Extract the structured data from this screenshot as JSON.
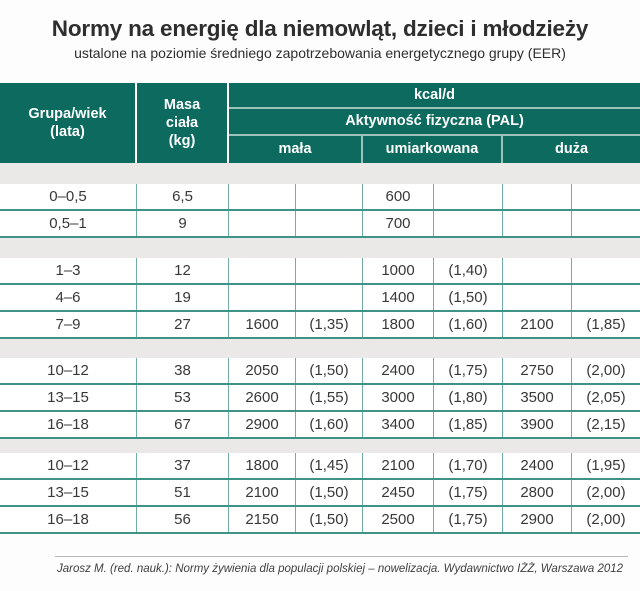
{
  "title": "Normy na energię dla niemowląt, dzieci i młodzieży",
  "subtitle": "ustalone na poziomie średniego zapotrzebowania energetycznego grupy (EER)",
  "colors": {
    "header_teal": "#0c6b5e",
    "row_line_teal": "#3f9286",
    "column_line_teal": "#6fb0a4",
    "gap_gray": "#ebe9e7"
  },
  "table": {
    "header": {
      "group_age": "Grupa/wiek\n(lata)",
      "body_mass": "Masa\nciała\n(kg)",
      "kcal": "kcal/d",
      "pal": "Aktywność fizyczna (PAL)",
      "activity_levels": [
        "mała",
        "umiarkowana",
        "duża"
      ]
    },
    "sections": [
      {
        "rows": [
          [
            "0–0,5",
            "6,5",
            "",
            "",
            "600",
            "",
            "",
            ""
          ],
          [
            "0,5–1",
            "9",
            "",
            "",
            "700",
            "",
            "",
            ""
          ]
        ]
      },
      {
        "rows": [
          [
            "1–3",
            "12",
            "",
            "",
            "1000",
            "(1,40)",
            "",
            ""
          ],
          [
            "4–6",
            "19",
            "",
            "",
            "1400",
            "(1,50)",
            "",
            ""
          ],
          [
            "7–9",
            "27",
            "1600",
            "(1,35)",
            "1800",
            "(1,60)",
            "2100",
            "(1,85)"
          ]
        ]
      },
      {
        "rows": [
          [
            "10–12",
            "38",
            "2050",
            "(1,50)",
            "2400",
            "(1,75)",
            "2750",
            "(2,00)"
          ],
          [
            "13–15",
            "53",
            "2600",
            "(1,55)",
            "3000",
            "(1,80)",
            "3500",
            "(2,05)"
          ],
          [
            "16–18",
            "67",
            "2900",
            "(1,60)",
            "3400",
            "(1,85)",
            "3900",
            "(2,15)"
          ]
        ]
      },
      {
        "rows": [
          [
            "10–12",
            "37",
            "1800",
            "(1,45)",
            "2100",
            "(1,70)",
            "2400",
            "(1,95)"
          ],
          [
            "13–15",
            "51",
            "2100",
            "(1,50)",
            "2450",
            "(1,75)",
            "2800",
            "(2,00)"
          ],
          [
            "16–18",
            "56",
            "2150",
            "(1,50)",
            "2500",
            "(1,75)",
            "2900",
            "(2,00)"
          ]
        ]
      }
    ]
  },
  "footer": "Jarosz M. (red. nauk.): Normy żywienia dla populacji polskiej – nowelizacja. Wydawnictwo IŻŻ, Warszawa 2012"
}
